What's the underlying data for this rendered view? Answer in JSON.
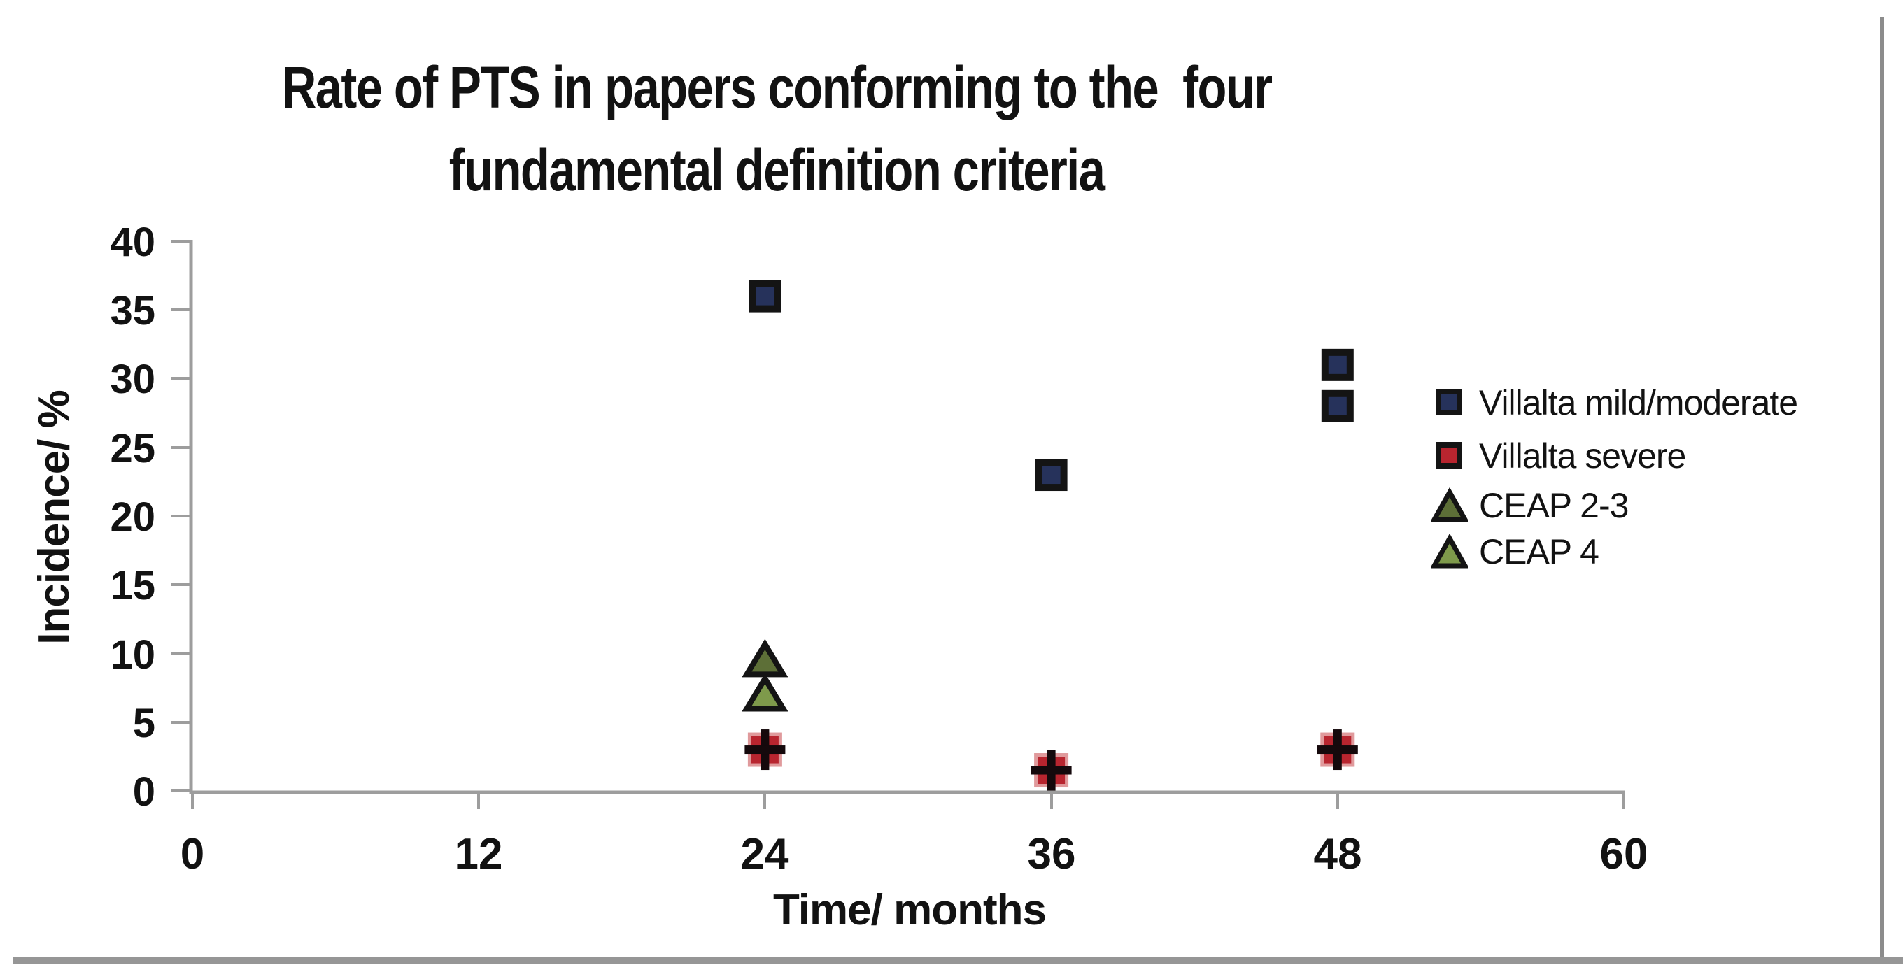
{
  "title": {
    "line1": "Rate of PTS in papers conforming to the  four",
    "line2": "fundamental definition criteria"
  },
  "chart_data": {
    "type": "scatter",
    "title": "Rate of PTS in papers conforming to the  four fundamental definition criteria",
    "xlabel": "Time/ months",
    "ylabel": "Incidence/ %",
    "xlim": [
      0,
      60
    ],
    "ylim": [
      0,
      40
    ],
    "x_ticks": [
      "0",
      "12",
      "24",
      "36",
      "48",
      "60"
    ],
    "y_ticks": [
      "0",
      "5",
      "10",
      "15",
      "20",
      "25",
      "30",
      "35",
      "40"
    ],
    "grid": false,
    "legend_position": "right",
    "axis_color": "#9d9d9d",
    "text_color": "#121212",
    "series": [
      {
        "name": "Villalta mild/moderate",
        "marker": "square",
        "fill": "#26325b",
        "border": "#141414",
        "points": [
          [
            24,
            36
          ],
          [
            36,
            23
          ],
          [
            48,
            31
          ],
          [
            48,
            28
          ]
        ]
      },
      {
        "name": "Villalta severe",
        "marker": "square-plus",
        "fill": "#b8252f",
        "border": "#e09a9c",
        "plus_color": "#15090c",
        "points": [
          [
            24,
            3
          ],
          [
            36,
            1.5
          ],
          [
            48,
            3
          ]
        ]
      },
      {
        "name": "CEAP 2-3",
        "marker": "triangle",
        "fill": "#5d6f37",
        "border": "#141414",
        "points": [
          [
            24,
            9.5
          ]
        ]
      },
      {
        "name": "CEAP 4",
        "marker": "triangle",
        "fill": "#7e9a4b",
        "border": "#141414",
        "points": [
          [
            24,
            7
          ]
        ]
      }
    ]
  },
  "frame": {
    "right_border": "#8c8c8c",
    "bottom_border": "#969696"
  }
}
